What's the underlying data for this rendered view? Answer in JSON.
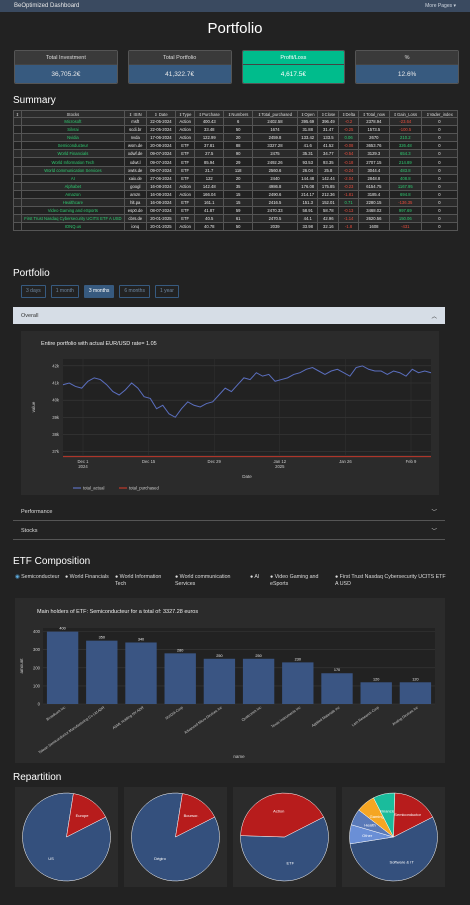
{
  "navbar": {
    "brand": "BeOptimized Dashboard",
    "more_pages": "More Pages ▾"
  },
  "page_title": "Portfolio",
  "kpis": [
    {
      "label": "Total Investment",
      "value": "36,705.2€",
      "variant": "blue"
    },
    {
      "label": "Total Portfolio",
      "value": "41,322.7€",
      "variant": "blue"
    },
    {
      "label": "Profit/Loss",
      "value": "4,617.5€",
      "variant": "green"
    },
    {
      "label": "%",
      "value": "12.6%",
      "variant": "blue"
    }
  ],
  "summary": {
    "title": "Summary",
    "columns": [
      "⇕",
      "Stocks",
      "⇕ ISIN",
      "⇕ Date",
      "⇕Type",
      "⇕Purchase",
      "⇕Numbers",
      "⇕Total_purchased",
      "⇕Open",
      "⇕Close",
      "⇕Delta",
      "⇕Total_now",
      "⇕Gain_Loss",
      "⇕Vader_index"
    ],
    "rows": [
      [
        "Microsoft",
        "msft",
        "22-05-2024",
        "Action",
        "400.43",
        "6",
        "2402.58",
        "395.69",
        "396.49",
        "-0.2",
        "2378.94",
        "-23.64",
        "0"
      ],
      [
        "Silvrai",
        "scdi.br",
        "22-05-2024",
        "Action",
        "33.48",
        "50",
        "1674",
        "31.88",
        "31.47",
        "-0.25",
        "1573.5",
        "-100.5",
        "0"
      ],
      [
        "Nvidia",
        "nvda",
        "17-06-2024",
        "Action",
        "122.99",
        "20",
        "2459.8",
        "133.42",
        "133.5",
        "0.06",
        "2670",
        "210.2",
        "0"
      ],
      [
        "Semiconducteur",
        "wsm.de",
        "20-08-2024",
        "ETF",
        "37.81",
        "88",
        "3327.28",
        "41.6",
        "41.52",
        "-0.08",
        "3653.76",
        "326.48",
        "0"
      ],
      [
        "World Financials",
        "xdwf.de",
        "09-07-2024",
        "ETF",
        "27.5",
        "90",
        "2475",
        "35.31",
        "34.77",
        "-0.54",
        "3129.3",
        "654.3",
        "0"
      ],
      [
        "World Information Tech",
        "xdwt.l",
        "09-07-2024",
        "ETF",
        "85.94",
        "29",
        "2492.26",
        "93.53",
        "93.35",
        "-0.18",
        "2707.15",
        "214.89",
        "0"
      ],
      [
        "World communication Services",
        "xwts.de",
        "09-07-2024",
        "ETF",
        "21.7",
        "118",
        "2560.6",
        "26.04",
        "25.8",
        "-0.24",
        "3044.4",
        "483.8",
        "0"
      ],
      [
        "AI",
        "xaix.de",
        "27-06-2024",
        "ETF",
        "122",
        "20",
        "2440",
        "144.48",
        "142.44",
        "-2.04",
        "2848.8",
        "408.8",
        "0"
      ],
      [
        "Alphabet",
        "googl",
        "16-08-2024",
        "Action",
        "142.48",
        "35",
        "4986.8",
        "176.08",
        "175.85",
        "-0.23",
        "6154.75",
        "1167.95",
        "0"
      ],
      [
        "Amazon",
        "amzn",
        "16-08-2024",
        "Action",
        "166.04",
        "15",
        "2490.6",
        "214.17",
        "212.36",
        "-1.81",
        "3185.4",
        "694.8",
        "0"
      ],
      [
        "Healthcare",
        "hlt.pa",
        "16-08-2024",
        "ETF",
        "161.1",
        "15",
        "2416.5",
        "151.3",
        "152.01",
        "0.71",
        "2280.15",
        "-136.35",
        "0"
      ],
      [
        "Video Gaming and eSports",
        "esp0.de",
        "08-07-2024",
        "ETF",
        "41.87",
        "59",
        "2470.33",
        "58.91",
        "58.78",
        "-0.13",
        "3468.02",
        "997.69",
        "0"
      ],
      [
        "First Trust Nasdaq Cybersecurity UCITS ETF A USD",
        "cbrs.de",
        "20-01-2025",
        "ETF",
        "40.5",
        "61",
        "2470.5",
        "44.1",
        "42.96",
        "-1.14",
        "2620.56",
        "150.06",
        "0"
      ],
      [
        "IONQ.us",
        "ionq",
        "20-01-2025",
        "Action",
        "40.78",
        "50",
        "2039",
        "33.98",
        "32.16",
        "-1.8",
        "1608",
        "-431",
        "0"
      ]
    ]
  },
  "portfolio": {
    "title": "Portfolio",
    "periods": [
      "3 days",
      "1 month",
      "3 months",
      "6 months",
      "1 year"
    ],
    "active_period": "3 months",
    "sections": [
      "Overall",
      "Performance",
      "Stocks"
    ]
  },
  "chart_data": [
    {
      "type": "line",
      "title": "Entire portfolio with actual EUR/USD rate= 1.05",
      "xlabel": "Date",
      "ylabel": "value",
      "x_ticks": [
        "Dec 1\n2024",
        "Dec 15",
        "Dec 29",
        "Jan 12\n2025",
        "Jan 26",
        "Feb 9"
      ],
      "y_ticks": [
        "37k",
        "38k",
        "39k",
        "40k",
        "41k",
        "42k"
      ],
      "ylim": [
        36800,
        42400
      ],
      "legend": "bottom-left",
      "series": [
        {
          "name": "total_actual",
          "color": "#5b6fbf",
          "values": [
            40900,
            41000,
            40800,
            40700,
            41100,
            41300,
            41200,
            40900,
            40500,
            40300,
            40600,
            41000,
            40700,
            40200,
            40100,
            39500,
            39700,
            39200,
            39000,
            39500,
            39900,
            39700,
            39600,
            39800,
            39900,
            40300,
            40700,
            40500,
            40900,
            41300,
            41200,
            41600,
            41400,
            41500,
            41100,
            41200,
            41300,
            41500,
            41600,
            41800,
            41900,
            41700,
            41500,
            41700,
            41800,
            41600,
            41400,
            41900,
            42000,
            41800,
            41700,
            41700,
            41500,
            41700,
            41600,
            41400,
            41800,
            41600,
            41700,
            41600
          ]
        },
        {
          "name": "total_purchased",
          "color": "#c0392b",
          "values": [
            36705,
            36705,
            36705,
            36705,
            36705,
            36705,
            36705,
            36705,
            36705,
            36705,
            36705,
            36705,
            36705,
            36705,
            36705,
            36705,
            36705,
            36705,
            36705,
            36705,
            36705,
            36705,
            36705,
            36705,
            36705,
            36705,
            36705,
            36705,
            36705,
            36705,
            36705,
            36705,
            36705,
            36705,
            36705,
            36705,
            36705,
            36705,
            36705,
            36705,
            36705,
            36705,
            36705,
            36705,
            36705,
            36705,
            36705,
            36705,
            36705,
            36705,
            36705,
            36705,
            36705,
            36705,
            36705,
            36705,
            36705,
            36705,
            36705,
            36705
          ]
        }
      ]
    },
    {
      "type": "bar",
      "title": "Main holders of ETF: Semiconducteur for a total of: 3327.28 euros",
      "xlabel": "name",
      "ylabel": "amount",
      "ylim": [
        0,
        420
      ],
      "y_ticks": [
        "0",
        "100",
        "200",
        "300",
        "400"
      ],
      "categories": [
        "Broadcom Inc",
        "Taiwan Semiconductor Manufacturing Co Ltd ADR",
        "ASML Holding NV ADR",
        "NVIDIA Corp",
        "Advanced Micro Devices Inc",
        "Qualcomm Inc",
        "Texas Instruments Inc",
        "Applied Materials Inc",
        "Lam Research Corp",
        "Analog Devices Inc"
      ],
      "values": [
        400,
        350,
        340,
        280,
        250,
        250,
        230,
        170,
        120,
        120
      ],
      "color": "#3a5583"
    }
  ],
  "etf": {
    "title": "ETF Composition",
    "options": [
      "Semiconducteur",
      "World Financials",
      "World Information Tech",
      "World communication Services",
      "AI",
      "Video Gaming and eSports",
      "First Trust Nasdaq Cybersecurity UCITS ETF A USD"
    ],
    "selected": "Semiconducteur"
  },
  "repartition": {
    "title": "Repartition",
    "pies": [
      {
        "slices": [
          {
            "label": "US",
            "value": 85,
            "color": "#34507d"
          },
          {
            "label": "Europe",
            "value": 15,
            "color": "#b71c1c"
          }
        ]
      },
      {
        "slices": [
          {
            "label": "Dégiro",
            "value": 85,
            "color": "#34507d"
          },
          {
            "label": "Boursor.",
            "value": 15,
            "color": "#b71c1c"
          }
        ]
      },
      {
        "slices": [
          {
            "label": "ETF",
            "value": 58,
            "color": "#34507d"
          },
          {
            "label": "Action",
            "value": 42,
            "color": "#b71c1c"
          }
        ]
      },
      {
        "slices": [
          {
            "label": "Software & IT",
            "value": 55,
            "color": "#34507d"
          },
          {
            "label": "Other",
            "value": 7,
            "color": "#6a8fd6"
          },
          {
            "label": "Health",
            "value": 6,
            "color": "#5a7ab8"
          },
          {
            "label": "Gaming",
            "value": 7,
            "color": "#f5a623"
          },
          {
            "label": "Financial",
            "value": 8,
            "color": "#1abc9c"
          },
          {
            "label": "Semiconductor",
            "value": 17,
            "color": "#b71c1c"
          }
        ]
      }
    ]
  }
}
